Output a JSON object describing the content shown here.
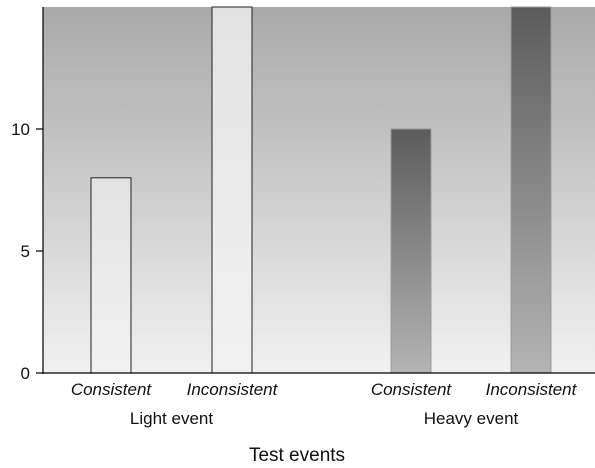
{
  "chart_data": {
    "type": "bar",
    "categories": [
      "Consistent",
      "Inconsistent",
      "Consistent",
      "Inconsistent"
    ],
    "groups": [
      {
        "label": "Light event",
        "category_indices": [
          0,
          1
        ]
      },
      {
        "label": "Heavy event",
        "category_indices": [
          2,
          3
        ]
      }
    ],
    "values": [
      8,
      15,
      10,
      15
    ],
    "xlabel": "Test events",
    "ylabel": "",
    "ylim": [
      0,
      15
    ],
    "yticks": [
      0,
      5,
      10
    ],
    "grid": false,
    "colors": {
      "light_bar_top": "#e2e2e2",
      "light_bar_bottom": "#f2f2f2",
      "heavy_bar_top": "#5c5c5c",
      "heavy_bar_bottom": "#b4b4b4",
      "background_top": "#a9a9a9",
      "background_bottom": "#f1f1f1"
    }
  }
}
